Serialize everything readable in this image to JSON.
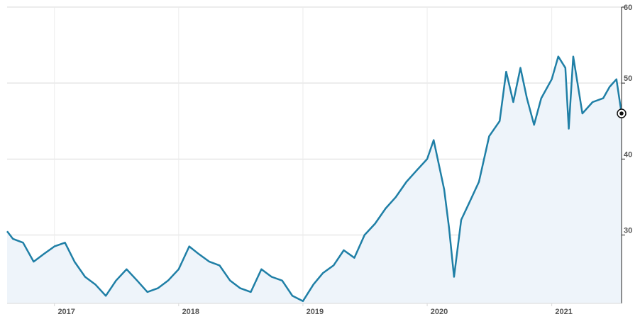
{
  "colors": {
    "line": "#1f7fa6",
    "area": "#eef4fa",
    "grid": "#d9d9d9",
    "axis": "#222222",
    "text": "#555555"
  },
  "chart_data": {
    "type": "area",
    "title": "",
    "xlabel": "",
    "ylabel": "",
    "x_range": [
      "2016-08-15",
      "2021-07-25"
    ],
    "ylim": [
      21,
      60
    ],
    "y_ticks": [
      30,
      40,
      50,
      60
    ],
    "x_ticks": [
      "2017",
      "2018",
      "2019",
      "2020",
      "2021"
    ],
    "x_tick_dates": [
      "2017-01-01",
      "2018-01-01",
      "2019-01-01",
      "2020-01-01",
      "2021-01-01"
    ],
    "grid": true,
    "y_axis_position": "right",
    "end_marker": true,
    "series": [
      {
        "x": [
          "2016-08-15",
          "2016-09-01",
          "2016-10-01",
          "2016-11-01",
          "2016-12-01",
          "2017-01-01",
          "2017-02-01",
          "2017-03-01",
          "2017-04-01",
          "2017-05-01",
          "2017-06-01",
          "2017-07-01",
          "2017-08-01",
          "2017-09-01",
          "2017-10-01",
          "2017-11-01",
          "2017-12-01",
          "2018-01-01",
          "2018-02-01",
          "2018-03-01",
          "2018-04-01",
          "2018-05-01",
          "2018-06-01",
          "2018-07-01",
          "2018-08-01",
          "2018-09-01",
          "2018-10-01",
          "2018-11-01",
          "2018-12-01",
          "2019-01-01",
          "2019-02-01",
          "2019-03-01",
          "2019-04-01",
          "2019-05-01",
          "2019-06-01",
          "2019-07-01",
          "2019-08-01",
          "2019-09-01",
          "2019-10-01",
          "2019-11-01",
          "2019-12-01",
          "2020-01-01",
          "2020-01-20",
          "2020-02-20",
          "2020-03-05",
          "2020-03-20",
          "2020-04-10",
          "2020-05-01",
          "2020-06-01",
          "2020-07-01",
          "2020-08-01",
          "2020-08-20",
          "2020-09-10",
          "2020-10-01",
          "2020-10-20",
          "2020-11-10",
          "2020-12-01",
          "2021-01-01",
          "2021-01-20",
          "2021-02-10",
          "2021-02-20",
          "2021-03-05",
          "2021-04-01",
          "2021-05-01",
          "2021-06-01",
          "2021-06-20",
          "2021-07-10",
          "2021-07-25"
        ],
        "y": [
          30.5,
          29.5,
          29.0,
          26.5,
          27.5,
          28.5,
          29.0,
          26.5,
          24.5,
          23.5,
          22.0,
          24.0,
          25.5,
          24.0,
          22.5,
          23.0,
          24.0,
          25.5,
          28.5,
          27.5,
          26.5,
          26.0,
          24.0,
          23.0,
          22.5,
          25.5,
          24.5,
          24.0,
          22.0,
          21.3,
          23.5,
          25.0,
          26.0,
          28.0,
          27.0,
          30.0,
          31.5,
          33.5,
          35.0,
          37.0,
          38.5,
          40.0,
          42.5,
          36.0,
          31.0,
          24.5,
          32.0,
          34.0,
          37.0,
          43.0,
          45.0,
          51.5,
          47.5,
          52.0,
          48.0,
          44.5,
          48.0,
          50.5,
          53.5,
          52.0,
          44.0,
          53.5,
          46.0,
          47.5,
          48.0,
          49.5,
          50.5,
          46.0
        ]
      }
    ]
  }
}
